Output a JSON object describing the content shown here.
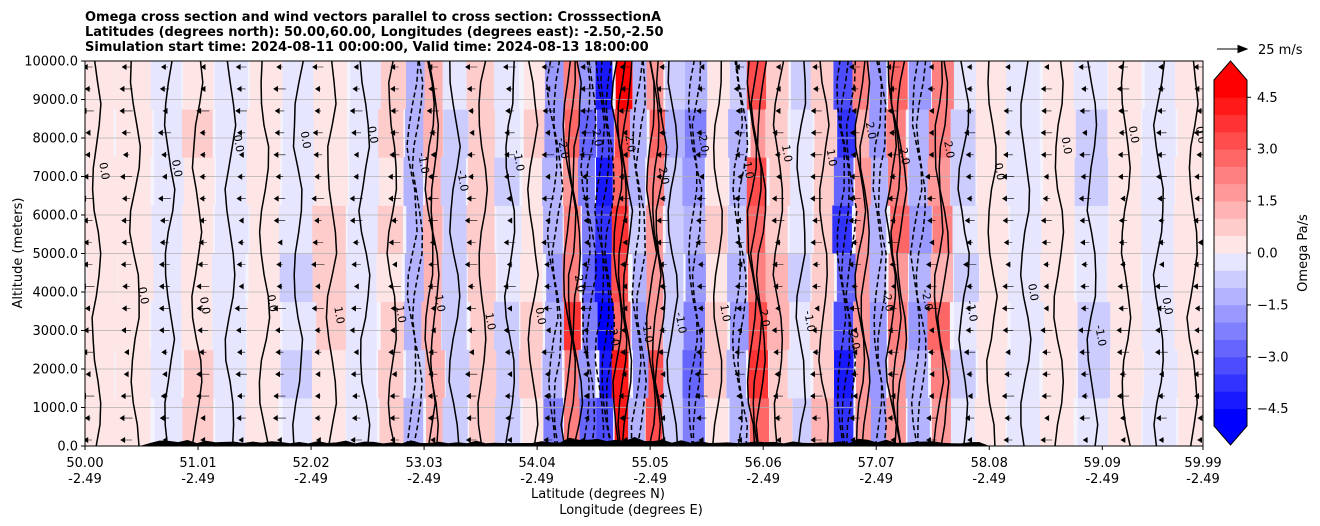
{
  "chart_data": {
    "type": "filled-contour",
    "title": [
      "Omega cross section and wind vectors parallel to cross section: CrosssectionA",
      "Latitudes (degrees north): 50.00,60.00, Longitudes (degrees east): -2.50,-2.50",
      "Simulation start time: 2024-08-11 00:00:00, Valid time: 2024-08-13 18:00:00"
    ],
    "xlabel": "Latitude (degrees N)",
    "xlabel2": "Longitude (degrees E)",
    "ylabel": "Altitude (meters)",
    "x_range": [
      50.0,
      59.99
    ],
    "y_range": [
      0,
      10000
    ],
    "x_ticks": [
      {
        "lat": "50.00",
        "lon": "-2.49",
        "v": 50.0
      },
      {
        "lat": "51.01",
        "lon": "-2.49",
        "v": 51.01
      },
      {
        "lat": "52.02",
        "lon": "-2.49",
        "v": 52.02
      },
      {
        "lat": "53.03",
        "lon": "-2.49",
        "v": 53.03
      },
      {
        "lat": "54.04",
        "lon": "-2.49",
        "v": 54.04
      },
      {
        "lat": "55.05",
        "lon": "-2.49",
        "v": 55.05
      },
      {
        "lat": "56.06",
        "lon": "-2.49",
        "v": 56.06
      },
      {
        "lat": "57.07",
        "lon": "-2.49",
        "v": 57.07
      },
      {
        "lat": "58.08",
        "lon": "-2.49",
        "v": 58.08
      },
      {
        "lat": "59.09",
        "lon": "-2.49",
        "v": 59.09
      },
      {
        "lat": "59.99",
        "lon": "-2.49",
        "v": 59.99
      }
    ],
    "y_ticks": [
      {
        "label": "0.0",
        "v": 0
      },
      {
        "label": "1000.0",
        "v": 1000
      },
      {
        "label": "2000.0",
        "v": 2000
      },
      {
        "label": "3000.0",
        "v": 3000
      },
      {
        "label": "4000.0",
        "v": 4000
      },
      {
        "label": "5000.0",
        "v": 5000
      },
      {
        "label": "6000.0",
        "v": 6000
      },
      {
        "label": "7000.0",
        "v": 7000
      },
      {
        "label": "8000.0",
        "v": 8000
      },
      {
        "label": "9000.0",
        "v": 9000
      },
      {
        "label": "10000.0",
        "v": 10000
      }
    ],
    "grid": "horizontal",
    "colorbar": {
      "label": "Omega Pa/s",
      "range": [
        -5,
        5
      ],
      "extend": "both",
      "ticks": [
        {
          "label": "4.5",
          "v": 4.5
        },
        {
          "label": "3.0",
          "v": 3.0
        },
        {
          "label": "1.5",
          "v": 1.5
        },
        {
          "label": "0.0",
          "v": 0.0
        },
        {
          "label": "−1.5",
          "v": -1.5
        },
        {
          "label": "−3.0",
          "v": -3.0
        },
        {
          "label": "−4.5",
          "v": -4.5
        }
      ],
      "colormap": "bwr"
    },
    "quiver_key": {
      "label": "25 m/s"
    },
    "omega_bands": [
      {
        "x": 50.1,
        "v": 0.3
      },
      {
        "x": 50.45,
        "v": 0.2
      },
      {
        "x": 50.75,
        "v": -0.4
      },
      {
        "x": 51.0,
        "v": 0.5
      },
      {
        "x": 51.3,
        "v": -0.3
      },
      {
        "x": 51.6,
        "v": 0.4
      },
      {
        "x": 51.9,
        "v": -0.5
      },
      {
        "x": 52.2,
        "v": 0.6
      },
      {
        "x": 52.5,
        "v": -0.4
      },
      {
        "x": 52.75,
        "v": 0.8
      },
      {
        "x": 52.95,
        "v": -1.3
      },
      {
        "x": 53.1,
        "v": 1.2
      },
      {
        "x": 53.3,
        "v": -0.8
      },
      {
        "x": 53.55,
        "v": 0.9
      },
      {
        "x": 53.8,
        "v": -0.6
      },
      {
        "x": 54.0,
        "v": 0.5
      },
      {
        "x": 54.2,
        "v": -1.8
      },
      {
        "x": 54.35,
        "v": 2.8
      },
      {
        "x": 54.5,
        "v": -2.5
      },
      {
        "x": 54.65,
        "v": -4.8
      },
      {
        "x": 54.8,
        "v": 4.2
      },
      {
        "x": 54.95,
        "v": -1.5
      },
      {
        "x": 55.1,
        "v": 2.9
      },
      {
        "x": 55.25,
        "v": -1.0
      },
      {
        "x": 55.45,
        "v": -2.2
      },
      {
        "x": 55.65,
        "v": 0.6
      },
      {
        "x": 55.85,
        "v": -1.2
      },
      {
        "x": 56.0,
        "v": 3.6
      },
      {
        "x": 56.2,
        "v": 1.0
      },
      {
        "x": 56.4,
        "v": -0.6
      },
      {
        "x": 56.6,
        "v": 0.8
      },
      {
        "x": 56.8,
        "v": -3.4
      },
      {
        "x": 56.95,
        "v": 1.8
      },
      {
        "x": 57.1,
        "v": -2.0
      },
      {
        "x": 57.25,
        "v": 2.6
      },
      {
        "x": 57.45,
        "v": -1.6
      },
      {
        "x": 57.65,
        "v": 2.2
      },
      {
        "x": 57.85,
        "v": -0.6
      },
      {
        "x": 58.1,
        "v": 0.4
      },
      {
        "x": 58.4,
        "v": -0.3
      },
      {
        "x": 58.7,
        "v": 0.2
      },
      {
        "x": 59.0,
        "v": -0.6
      },
      {
        "x": 59.3,
        "v": 0.3
      },
      {
        "x": 59.6,
        "v": -0.2
      },
      {
        "x": 59.9,
        "v": 0.3
      }
    ],
    "contour_labels": [
      "0.0",
      "1.0",
      "-1.0",
      "2.0",
      "-2.0"
    ]
  }
}
